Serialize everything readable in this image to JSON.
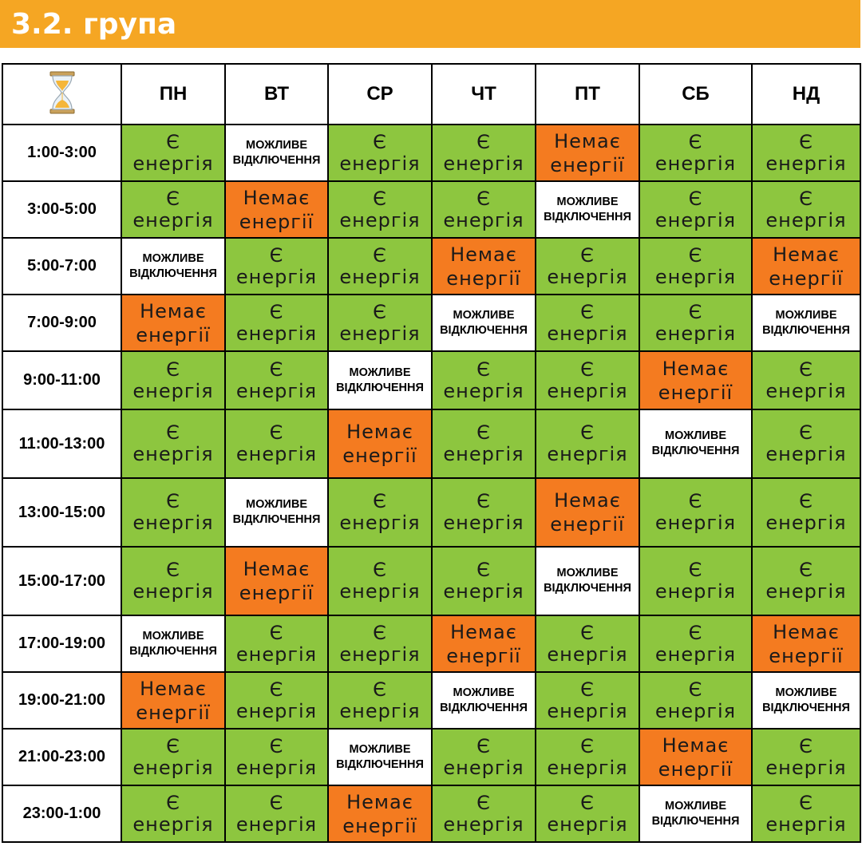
{
  "title": "3.2. група",
  "header_icon": "hourglass-icon",
  "colors": {
    "header": "#F5A623",
    "on": "#8DC63F",
    "off": "#F47B20",
    "maybe": "#FFFFFF"
  },
  "days": [
    "ПН",
    "ВТ",
    "СР",
    "ЧТ",
    "ПТ",
    "СБ",
    "НД"
  ],
  "status_labels": {
    "on": [
      "Є",
      "енергія"
    ],
    "off": [
      "Немає",
      "енергії"
    ],
    "maybe": [
      "МОЖЛИВЕ",
      "ВІДКЛЮЧЕННЯ"
    ]
  },
  "rows": [
    {
      "time": "1:00-3:00",
      "cells": [
        "on",
        "maybe",
        "on",
        "on",
        "off",
        "on",
        "on"
      ]
    },
    {
      "time": "3:00-5:00",
      "cells": [
        "on",
        "off",
        "on",
        "on",
        "maybe",
        "on",
        "on"
      ]
    },
    {
      "time": "5:00-7:00",
      "cells": [
        "maybe",
        "on",
        "on",
        "off",
        "on",
        "on",
        "off"
      ]
    },
    {
      "time": "7:00-9:00",
      "cells": [
        "off",
        "on",
        "on",
        "maybe",
        "on",
        "on",
        "maybe"
      ]
    },
    {
      "time": "9:00-11:00",
      "cells": [
        "on",
        "on",
        "maybe",
        "on",
        "on",
        "off",
        "on"
      ]
    },
    {
      "time": "11:00-13:00",
      "cells": [
        "on",
        "on",
        "off",
        "on",
        "on",
        "maybe",
        "on"
      ]
    },
    {
      "time": "13:00-15:00",
      "cells": [
        "on",
        "maybe",
        "on",
        "on",
        "off",
        "on",
        "on"
      ]
    },
    {
      "time": "15:00-17:00",
      "cells": [
        "on",
        "off",
        "on",
        "on",
        "maybe",
        "on",
        "on"
      ]
    },
    {
      "time": "17:00-19:00",
      "cells": [
        "maybe",
        "on",
        "on",
        "off",
        "on",
        "on",
        "off"
      ]
    },
    {
      "time": "19:00-21:00",
      "cells": [
        "off",
        "on",
        "on",
        "maybe",
        "on",
        "on",
        "maybe"
      ]
    },
    {
      "time": "21:00-23:00",
      "cells": [
        "on",
        "on",
        "maybe",
        "on",
        "on",
        "off",
        "on"
      ]
    },
    {
      "time": "23:00-1:00",
      "cells": [
        "on",
        "on",
        "off",
        "on",
        "on",
        "maybe",
        "on"
      ]
    }
  ]
}
